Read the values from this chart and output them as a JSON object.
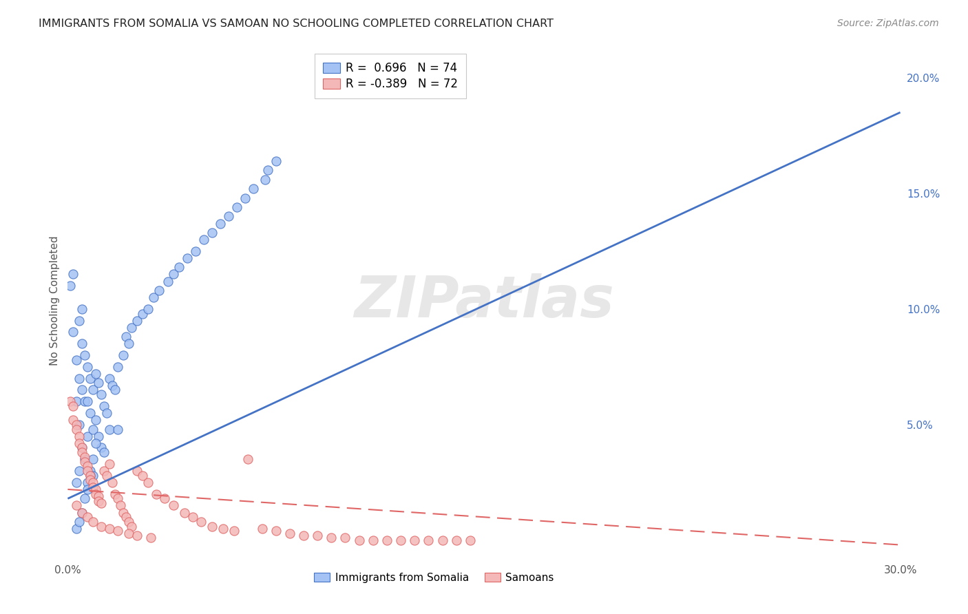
{
  "title": "IMMIGRANTS FROM SOMALIA VS SAMOAN NO SCHOOLING COMPLETED CORRELATION CHART",
  "source": "Source: ZipAtlas.com",
  "ylabel": "No Schooling Completed",
  "xlabel": "",
  "xlim": [
    0.0,
    0.3
  ],
  "ylim": [
    -0.008,
    0.215
  ],
  "y_ticks_right": [
    0.0,
    0.05,
    0.1,
    0.15,
    0.2
  ],
  "y_tick_labels_right": [
    "",
    "5.0%",
    "10.0%",
    "15.0%",
    "20.0%"
  ],
  "color_blue": "#a4c2f4",
  "color_pink": "#f4b8b8",
  "line_blue": "#4472c4",
  "line_pink": "#e06666",
  "watermark": "ZIPatlas",
  "blue_line_x0": 0.0,
  "blue_line_y0": 0.018,
  "blue_line_x1": 0.3,
  "blue_line_y1": 0.185,
  "pink_line_x0": 0.0,
  "pink_line_y0": 0.022,
  "pink_line_x1": 0.3,
  "pink_line_y1": -0.002,
  "somalia_scatter_x": [
    0.001,
    0.002,
    0.002,
    0.003,
    0.003,
    0.003,
    0.004,
    0.004,
    0.004,
    0.004,
    0.005,
    0.005,
    0.005,
    0.005,
    0.006,
    0.006,
    0.006,
    0.007,
    0.007,
    0.007,
    0.007,
    0.008,
    0.008,
    0.008,
    0.009,
    0.009,
    0.009,
    0.01,
    0.01,
    0.011,
    0.011,
    0.012,
    0.012,
    0.013,
    0.013,
    0.014,
    0.015,
    0.015,
    0.016,
    0.017,
    0.018,
    0.018,
    0.02,
    0.021,
    0.022,
    0.023,
    0.025,
    0.027,
    0.029,
    0.031,
    0.033,
    0.036,
    0.038,
    0.04,
    0.043,
    0.046,
    0.049,
    0.052,
    0.055,
    0.058,
    0.061,
    0.064,
    0.067,
    0.071,
    0.072,
    0.075,
    0.003,
    0.004,
    0.005,
    0.006,
    0.007,
    0.008,
    0.009,
    0.01
  ],
  "somalia_scatter_y": [
    0.11,
    0.09,
    0.115,
    0.078,
    0.06,
    0.025,
    0.095,
    0.07,
    0.05,
    0.03,
    0.1,
    0.085,
    0.065,
    0.04,
    0.08,
    0.06,
    0.035,
    0.075,
    0.06,
    0.045,
    0.025,
    0.07,
    0.055,
    0.03,
    0.065,
    0.048,
    0.028,
    0.072,
    0.052,
    0.068,
    0.045,
    0.063,
    0.04,
    0.058,
    0.038,
    0.055,
    0.07,
    0.048,
    0.067,
    0.065,
    0.075,
    0.048,
    0.08,
    0.088,
    0.085,
    0.092,
    0.095,
    0.098,
    0.1,
    0.105,
    0.108,
    0.112,
    0.115,
    0.118,
    0.122,
    0.125,
    0.13,
    0.133,
    0.137,
    0.14,
    0.144,
    0.148,
    0.152,
    0.156,
    0.16,
    0.164,
    0.005,
    0.008,
    0.012,
    0.018,
    0.022,
    0.028,
    0.035,
    0.042
  ],
  "samoan_scatter_x": [
    0.001,
    0.002,
    0.002,
    0.003,
    0.003,
    0.004,
    0.004,
    0.005,
    0.005,
    0.006,
    0.006,
    0.007,
    0.007,
    0.008,
    0.008,
    0.009,
    0.009,
    0.01,
    0.01,
    0.011,
    0.011,
    0.012,
    0.013,
    0.014,
    0.015,
    0.016,
    0.017,
    0.018,
    0.019,
    0.02,
    0.021,
    0.022,
    0.023,
    0.025,
    0.027,
    0.029,
    0.032,
    0.035,
    0.038,
    0.042,
    0.045,
    0.048,
    0.052,
    0.056,
    0.06,
    0.065,
    0.07,
    0.075,
    0.08,
    0.085,
    0.09,
    0.095,
    0.1,
    0.105,
    0.11,
    0.115,
    0.12,
    0.125,
    0.13,
    0.135,
    0.14,
    0.145,
    0.003,
    0.005,
    0.007,
    0.009,
    0.012,
    0.015,
    0.018,
    0.022,
    0.025,
    0.03
  ],
  "samoan_scatter_y": [
    0.06,
    0.058,
    0.052,
    0.05,
    0.048,
    0.045,
    0.042,
    0.04,
    0.038,
    0.036,
    0.034,
    0.032,
    0.03,
    0.028,
    0.026,
    0.025,
    0.023,
    0.022,
    0.02,
    0.019,
    0.017,
    0.016,
    0.03,
    0.028,
    0.033,
    0.025,
    0.02,
    0.018,
    0.015,
    0.012,
    0.01,
    0.008,
    0.006,
    0.03,
    0.028,
    0.025,
    0.02,
    0.018,
    0.015,
    0.012,
    0.01,
    0.008,
    0.006,
    0.005,
    0.004,
    0.035,
    0.005,
    0.004,
    0.003,
    0.002,
    0.002,
    0.001,
    0.001,
    0.0,
    0.0,
    0.0,
    0.0,
    0.0,
    0.0,
    0.0,
    0.0,
    0.0,
    0.015,
    0.012,
    0.01,
    0.008,
    0.006,
    0.005,
    0.004,
    0.003,
    0.002,
    0.001
  ]
}
